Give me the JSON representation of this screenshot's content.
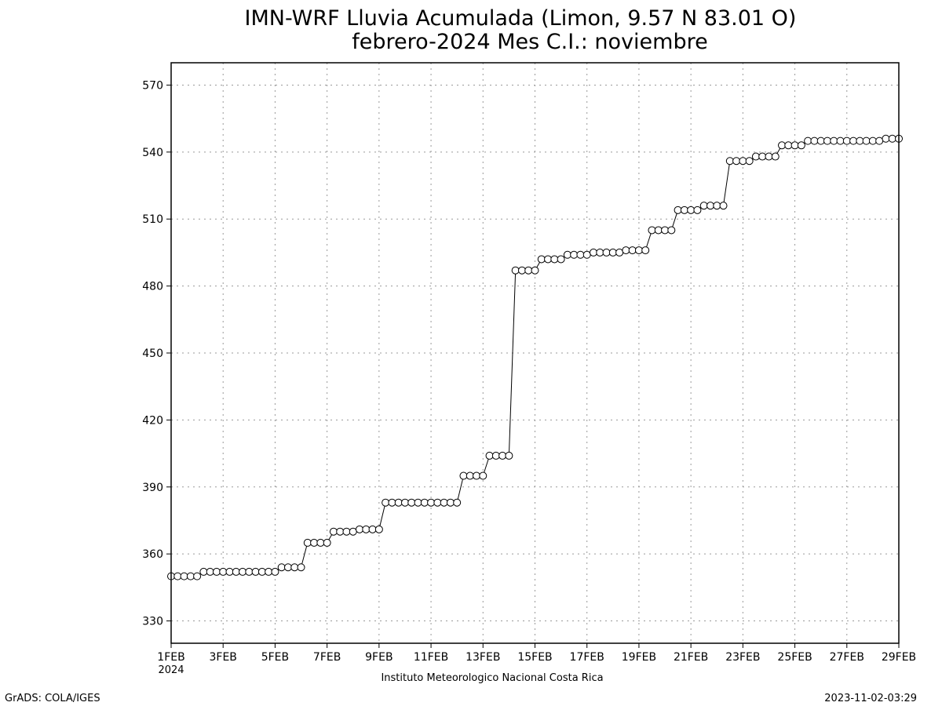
{
  "chart_data": {
    "type": "line",
    "title": "IMN-WRF  Lluvia Acumulada  (Limon, 9.57  N 83.01  O)",
    "subtitle": "febrero-2024 Mes C.I.: noviembre",
    "xlabel": "",
    "ylabel": "",
    "x_start_label": "1FEB",
    "x_year_label": "2024",
    "x_tick_labels": [
      "1FEB",
      "3FEB",
      "5FEB",
      "7FEB",
      "9FEB",
      "11FEB",
      "13FEB",
      "15FEB",
      "17FEB",
      "19FEB",
      "21FEB",
      "23FEB",
      "25FEB",
      "27FEB",
      "29FEB"
    ],
    "xlim": [
      0,
      28
    ],
    "y_ticks": [
      330,
      360,
      390,
      420,
      450,
      480,
      510,
      540,
      570
    ],
    "ylim": [
      320,
      580
    ],
    "grid": true,
    "marker": "open-circle",
    "series": [
      {
        "x": [
          0,
          0.25,
          0.5,
          0.75,
          1,
          1.25,
          1.5,
          1.75,
          2,
          2.25,
          2.5,
          2.75,
          3,
          3.25,
          3.5,
          3.75,
          4,
          4.25,
          4.5,
          4.75,
          5,
          5.25,
          5.5,
          5.75,
          6,
          6.25,
          6.5,
          6.75,
          7,
          7.25,
          7.5,
          7.75,
          8,
          8.25,
          8.5,
          8.75,
          9,
          9.25,
          9.5,
          9.75,
          10,
          10.25,
          10.5,
          10.75,
          11,
          11.25,
          11.5,
          11.75,
          12,
          12.25,
          12.5,
          12.75,
          13,
          13.25,
          13.5,
          13.75,
          14,
          14.25,
          14.5,
          14.75,
          15,
          15.25,
          15.5,
          15.75,
          16,
          16.25,
          16.5,
          16.75,
          17,
          17.25,
          17.5,
          17.75,
          18,
          18.25,
          18.5,
          18.75,
          19,
          19.25,
          19.5,
          19.75,
          20,
          20.25,
          20.5,
          20.75,
          21,
          21.25,
          21.5,
          21.75,
          22,
          22.25,
          22.5,
          22.75,
          23,
          23.25,
          23.5,
          23.75,
          24,
          24.25,
          24.5,
          24.75,
          25,
          25.25,
          25.5,
          25.75,
          26,
          26.25,
          26.5,
          26.75,
          27,
          27.25,
          27.5,
          27.75,
          28
        ],
        "values": [
          350,
          350,
          350,
          350,
          350,
          352,
          352,
          352,
          352,
          352,
          352,
          352,
          352,
          352,
          352,
          352,
          352,
          354,
          354,
          354,
          354,
          365,
          365,
          365,
          365,
          370,
          370,
          370,
          370,
          371,
          371,
          371,
          371,
          383,
          383,
          383,
          383,
          383,
          383,
          383,
          383,
          383,
          383,
          383,
          383,
          395,
          395,
          395,
          395,
          404,
          404,
          404,
          404,
          487,
          487,
          487,
          487,
          492,
          492,
          492,
          492,
          494,
          494,
          494,
          494,
          495,
          495,
          495,
          495,
          495,
          496,
          496,
          496,
          496,
          505,
          505,
          505,
          505,
          514,
          514,
          514,
          514,
          516,
          516,
          516,
          516,
          536,
          536,
          536,
          536,
          538,
          538,
          538,
          538,
          543,
          543,
          543,
          543,
          545,
          545,
          545,
          545,
          545,
          545,
          545,
          545,
          545,
          545,
          545,
          545,
          546,
          546,
          546
        ]
      }
    ]
  },
  "footer": {
    "center": "Instituto Meteorologico Nacional Costa Rica",
    "left": "GrADS: COLA/IGES",
    "right": "2023-11-02-03:29"
  }
}
